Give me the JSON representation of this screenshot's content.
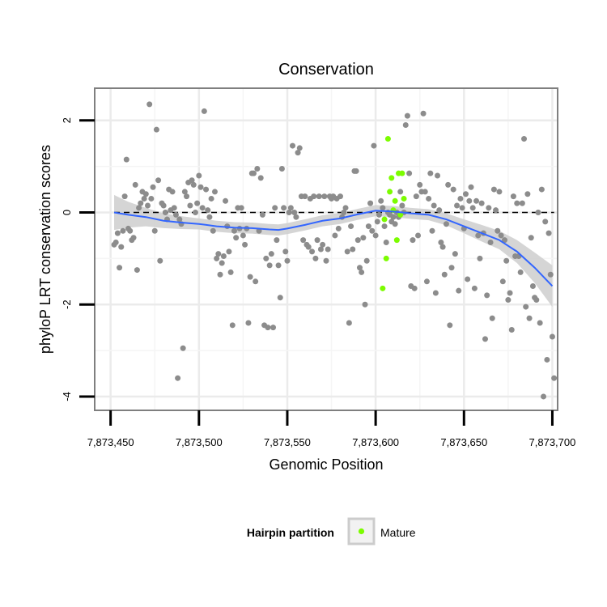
{
  "chart_data": {
    "type": "scatter",
    "title": "Conservation",
    "xlabel": "Genomic Position",
    "ylabel": "phyloP LRT conservation scores",
    "xlim": [
      7873441,
      7873703
    ],
    "ylim": [
      -4.3,
      2.7
    ],
    "x_ticks": [
      7873450,
      7873500,
      7873550,
      7873600,
      7873650,
      7873700
    ],
    "x_tick_labels": [
      "7,873,450",
      "7,873,500",
      "7,873,550",
      "7,873,600",
      "7,873,650",
      "7,873,700"
    ],
    "y_ticks": [
      -4,
      -2,
      0,
      2
    ],
    "y_tick_labels": [
      "-4",
      "-2",
      "0",
      "2"
    ],
    "grid": true,
    "reference_line": {
      "y": 0,
      "style": "dashed"
    },
    "legend": {
      "title": "Hairpin partition",
      "position": "bottom",
      "entries": [
        "Mature"
      ]
    },
    "colors": {
      "other": "#8c8c8c",
      "mature": "#7cfc00",
      "smooth": "#3366ff",
      "band": "#d0d0d0",
      "panel_border": "#7f7f7f",
      "grid": "#ebebeb"
    },
    "series": [
      {
        "name": "Other",
        "points": [
          [
            7873452,
            -0.7
          ],
          [
            7873453,
            -0.65
          ],
          [
            7873454,
            -0.45
          ],
          [
            7873455,
            -1.2
          ],
          [
            7873456,
            -0.75
          ],
          [
            7873457,
            -0.4
          ],
          [
            7873458,
            0.35
          ],
          [
            7873459,
            1.15
          ],
          [
            7873460,
            -0.35
          ],
          [
            7873461,
            -0.4
          ],
          [
            7873462,
            -0.6
          ],
          [
            7873463,
            -0.55
          ],
          [
            7873464,
            0.6
          ],
          [
            7873465,
            -1.25
          ],
          [
            7873466,
            0.1
          ],
          [
            7873467,
            0.2
          ],
          [
            7873468,
            0.45
          ],
          [
            7873469,
            0.3
          ],
          [
            7873470,
            0.4
          ],
          [
            7873471,
            0.15
          ],
          [
            7873472,
            2.35
          ],
          [
            7873473,
            0.3
          ],
          [
            7873474,
            0.55
          ],
          [
            7873475,
            -0.4
          ],
          [
            7873476,
            1.8
          ],
          [
            7873477,
            0.7
          ],
          [
            7873478,
            -1.05
          ],
          [
            7873479,
            0.2
          ],
          [
            7873480,
            0.15
          ],
          [
            7873481,
            0.0
          ],
          [
            7873482,
            -0.15
          ],
          [
            7873483,
            0.5
          ],
          [
            7873484,
            0.05
          ],
          [
            7873485,
            0.45
          ],
          [
            7873486,
            0.1
          ],
          [
            7873487,
            -0.05
          ],
          [
            7873488,
            -3.6
          ],
          [
            7873489,
            -0.15
          ],
          [
            7873490,
            -0.25
          ],
          [
            7873491,
            -2.95
          ],
          [
            7873492,
            0.45
          ],
          [
            7873493,
            0.35
          ],
          [
            7873494,
            0.65
          ],
          [
            7873495,
            0.15
          ],
          [
            7873496,
            0.7
          ],
          [
            7873497,
            0.6
          ],
          [
            7873498,
            0.0
          ],
          [
            7873499,
            0.2
          ],
          [
            7873500,
            0.8
          ],
          [
            7873501,
            0.55
          ],
          [
            7873502,
            0.1
          ],
          [
            7873503,
            2.2
          ],
          [
            7873504,
            0.5
          ],
          [
            7873505,
            0.05
          ],
          [
            7873506,
            -0.1
          ],
          [
            7873507,
            0.3
          ],
          [
            7873508,
            -0.4
          ],
          [
            7873509,
            0.45
          ],
          [
            7873510,
            -1.0
          ],
          [
            7873511,
            -0.9
          ],
          [
            7873512,
            -1.35
          ],
          [
            7873513,
            -1.1
          ],
          [
            7873514,
            -0.95
          ],
          [
            7873515,
            0.25
          ],
          [
            7873516,
            -0.3
          ],
          [
            7873517,
            -0.85
          ],
          [
            7873518,
            -1.3
          ],
          [
            7873519,
            -2.45
          ],
          [
            7873520,
            -0.4
          ],
          [
            7873521,
            -0.55
          ],
          [
            7873522,
            0.1
          ],
          [
            7873523,
            -0.35
          ],
          [
            7873524,
            0.1
          ],
          [
            7873525,
            -0.5
          ],
          [
            7873526,
            -0.7
          ],
          [
            7873527,
            -0.35
          ],
          [
            7873528,
            -2.4
          ],
          [
            7873529,
            -1.4
          ],
          [
            7873530,
            0.85
          ],
          [
            7873531,
            0.85
          ],
          [
            7873532,
            -1.5
          ],
          [
            7873533,
            0.95
          ],
          [
            7873534,
            -0.4
          ],
          [
            7873535,
            0.75
          ],
          [
            7873536,
            -0.05
          ],
          [
            7873537,
            -2.45
          ],
          [
            7873538,
            -1.0
          ],
          [
            7873539,
            -2.5
          ],
          [
            7873540,
            -1.15
          ],
          [
            7873541,
            -0.9
          ],
          [
            7873542,
            -2.5
          ],
          [
            7873543,
            0.1
          ],
          [
            7873544,
            -0.6
          ],
          [
            7873545,
            -1.15
          ],
          [
            7873546,
            -1.85
          ],
          [
            7873547,
            0.95
          ],
          [
            7873548,
            0.1
          ],
          [
            7873549,
            -0.85
          ],
          [
            7873550,
            -1.05
          ],
          [
            7873551,
            0.0
          ],
          [
            7873552,
            0.1
          ],
          [
            7873553,
            1.45
          ],
          [
            7873554,
            0.0
          ],
          [
            7873555,
            -0.1
          ],
          [
            7873556,
            1.3
          ],
          [
            7873557,
            1.4
          ],
          [
            7873558,
            0.35
          ],
          [
            7873559,
            -0.6
          ],
          [
            7873560,
            0.35
          ],
          [
            7873561,
            -0.7
          ],
          [
            7873562,
            -0.75
          ],
          [
            7873563,
            0.3
          ],
          [
            7873564,
            -0.85
          ],
          [
            7873565,
            0.35
          ],
          [
            7873566,
            -1.0
          ],
          [
            7873567,
            -0.6
          ],
          [
            7873568,
            0.35
          ],
          [
            7873569,
            -0.8
          ],
          [
            7873570,
            -0.7
          ],
          [
            7873571,
            0.35
          ],
          [
            7873572,
            -1.05
          ],
          [
            7873573,
            -0.8
          ],
          [
            7873574,
            0.35
          ],
          [
            7873575,
            0.3
          ],
          [
            7873576,
            0.35
          ],
          [
            7873577,
            -0.5
          ],
          [
            7873578,
            0.3
          ],
          [
            7873579,
            -0.35
          ],
          [
            7873580,
            0.35
          ],
          [
            7873581,
            -0.1
          ],
          [
            7873582,
            0.0
          ],
          [
            7873583,
            0.1
          ],
          [
            7873584,
            -0.85
          ],
          [
            7873585,
            -2.4
          ],
          [
            7873586,
            -0.3
          ],
          [
            7873587,
            -0.8
          ],
          [
            7873588,
            0.9
          ],
          [
            7873589,
            0.9
          ],
          [
            7873590,
            -0.6
          ],
          [
            7873591,
            -1.2
          ],
          [
            7873592,
            -1.3
          ],
          [
            7873593,
            -0.55
          ],
          [
            7873594,
            -2.0
          ],
          [
            7873595,
            -1.05
          ],
          [
            7873596,
            -0.3
          ],
          [
            7873597,
            0.2
          ],
          [
            7873598,
            -0.4
          ],
          [
            7873599,
            1.45
          ],
          [
            7873600,
            -0.5
          ],
          [
            7873601,
            -0.2
          ],
          [
            7873602,
            -0.05
          ],
          [
            7873603,
            0.25
          ],
          [
            7873604,
            0.1
          ],
          [
            7873605,
            -0.3
          ],
          [
            7873606,
            -0.65
          ],
          [
            7873607,
            0.0
          ],
          [
            7873608,
            -0.05
          ],
          [
            7873609,
            -0.2
          ],
          [
            7873610,
            -0.1
          ],
          [
            7873611,
            -0.25
          ],
          [
            7873612,
            0.0
          ],
          [
            7873613,
            -0.1
          ],
          [
            7873614,
            0.45
          ],
          [
            7873615,
            0.15
          ],
          [
            7873616,
            0.0
          ],
          [
            7873617,
            1.9
          ],
          [
            7873618,
            2.1
          ],
          [
            7873619,
            0.85
          ],
          [
            7873620,
            -1.6
          ],
          [
            7873621,
            -0.6
          ],
          [
            7873622,
            -1.65
          ],
          [
            7873623,
            0.35
          ],
          [
            7873624,
            -0.5
          ],
          [
            7873625,
            0.6
          ],
          [
            7873626,
            0.45
          ],
          [
            7873627,
            2.15
          ],
          [
            7873628,
            0.45
          ],
          [
            7873629,
            -1.5
          ],
          [
            7873630,
            0.3
          ],
          [
            7873631,
            0.85
          ],
          [
            7873632,
            -0.4
          ],
          [
            7873633,
            0.15
          ],
          [
            7873634,
            -1.75
          ],
          [
            7873635,
            0.8
          ],
          [
            7873636,
            0.05
          ],
          [
            7873637,
            -0.65
          ],
          [
            7873638,
            -0.75
          ],
          [
            7873639,
            -1.35
          ],
          [
            7873640,
            -0.25
          ],
          [
            7873641,
            0.6
          ],
          [
            7873642,
            -2.45
          ],
          [
            7873643,
            -1.2
          ],
          [
            7873644,
            0.5
          ],
          [
            7873645,
            -0.9
          ],
          [
            7873646,
            0.15
          ],
          [
            7873647,
            -1.7
          ],
          [
            7873648,
            0.3
          ],
          [
            7873649,
            0.1
          ],
          [
            7873650,
            -0.35
          ],
          [
            7873651,
            0.4
          ],
          [
            7873652,
            -1.45
          ],
          [
            7873653,
            0.25
          ],
          [
            7873654,
            0.55
          ],
          [
            7873655,
            0.1
          ],
          [
            7873656,
            -1.65
          ],
          [
            7873657,
            0.25
          ],
          [
            7873658,
            -0.5
          ],
          [
            7873659,
            -1.0
          ],
          [
            7873660,
            0.2
          ],
          [
            7873661,
            -0.45
          ],
          [
            7873662,
            -2.75
          ],
          [
            7873663,
            -1.8
          ],
          [
            7873664,
            0.1
          ],
          [
            7873665,
            -0.65
          ],
          [
            7873666,
            -2.3
          ],
          [
            7873667,
            0.5
          ],
          [
            7873668,
            0.05
          ],
          [
            7873669,
            -0.4
          ],
          [
            7873670,
            0.45
          ],
          [
            7873671,
            -0.5
          ],
          [
            7873672,
            -1.5
          ],
          [
            7873673,
            -0.6
          ],
          [
            7873674,
            -1.05
          ],
          [
            7873675,
            -1.9
          ],
          [
            7873676,
            -1.75
          ],
          [
            7873677,
            -2.55
          ],
          [
            7873678,
            0.35
          ],
          [
            7873679,
            -0.95
          ],
          [
            7873680,
            0.2
          ],
          [
            7873681,
            -0.95
          ],
          [
            7873682,
            -1.3
          ],
          [
            7873683,
            0.2
          ],
          [
            7873684,
            1.6
          ],
          [
            7873685,
            -2.05
          ],
          [
            7873686,
            0.4
          ],
          [
            7873687,
            -2.3
          ],
          [
            7873688,
            -0.55
          ],
          [
            7873689,
            -1.6
          ],
          [
            7873690,
            -1.85
          ],
          [
            7873691,
            -1.9
          ],
          [
            7873692,
            0.0
          ],
          [
            7873693,
            -2.4
          ],
          [
            7873694,
            0.5
          ],
          [
            7873695,
            -4.0
          ],
          [
            7873696,
            -0.2
          ],
          [
            7873697,
            -3.2
          ],
          [
            7873698,
            -0.45
          ],
          [
            7873699,
            -1.35
          ],
          [
            7873700,
            -2.7
          ],
          [
            7873701,
            -3.6
          ]
        ]
      },
      {
        "name": "Mature",
        "points": [
          [
            7873604,
            -1.65
          ],
          [
            7873605,
            -0.15
          ],
          [
            7873606,
            -1.0
          ],
          [
            7873607,
            1.6
          ],
          [
            7873608,
            0.45
          ],
          [
            7873609,
            0.75
          ],
          [
            7873610,
            0.05
          ],
          [
            7873611,
            0.25
          ],
          [
            7873612,
            -0.6
          ],
          [
            7873613,
            0.85
          ],
          [
            7873614,
            -0.05
          ],
          [
            7873615,
            0.85
          ],
          [
            7873616,
            0.3
          ]
        ]
      }
    ],
    "smooth_line": {
      "x": [
        7873452,
        7873460,
        7873470,
        7873480,
        7873490,
        7873500,
        7873510,
        7873520,
        7873530,
        7873540,
        7873545,
        7873550,
        7873560,
        7873570,
        7873580,
        7873590,
        7873600,
        7873610,
        7873620,
        7873630,
        7873640,
        7873650,
        7873660,
        7873670,
        7873680,
        7873690,
        7873700
      ],
      "y": [
        0.0,
        -0.05,
        -0.1,
        -0.18,
        -0.22,
        -0.25,
        -0.3,
        -0.33,
        -0.34,
        -0.37,
        -0.38,
        -0.35,
        -0.27,
        -0.18,
        -0.13,
        -0.04,
        0.04,
        0.02,
        -0.02,
        -0.05,
        -0.15,
        -0.3,
        -0.45,
        -0.6,
        -0.85,
        -1.2,
        -1.6
      ],
      "se": [
        0.38,
        0.28,
        0.2,
        0.16,
        0.14,
        0.12,
        0.12,
        0.12,
        0.12,
        0.12,
        0.12,
        0.12,
        0.12,
        0.12,
        0.12,
        0.12,
        0.12,
        0.12,
        0.12,
        0.12,
        0.13,
        0.15,
        0.18,
        0.2,
        0.25,
        0.33,
        0.45
      ]
    }
  }
}
